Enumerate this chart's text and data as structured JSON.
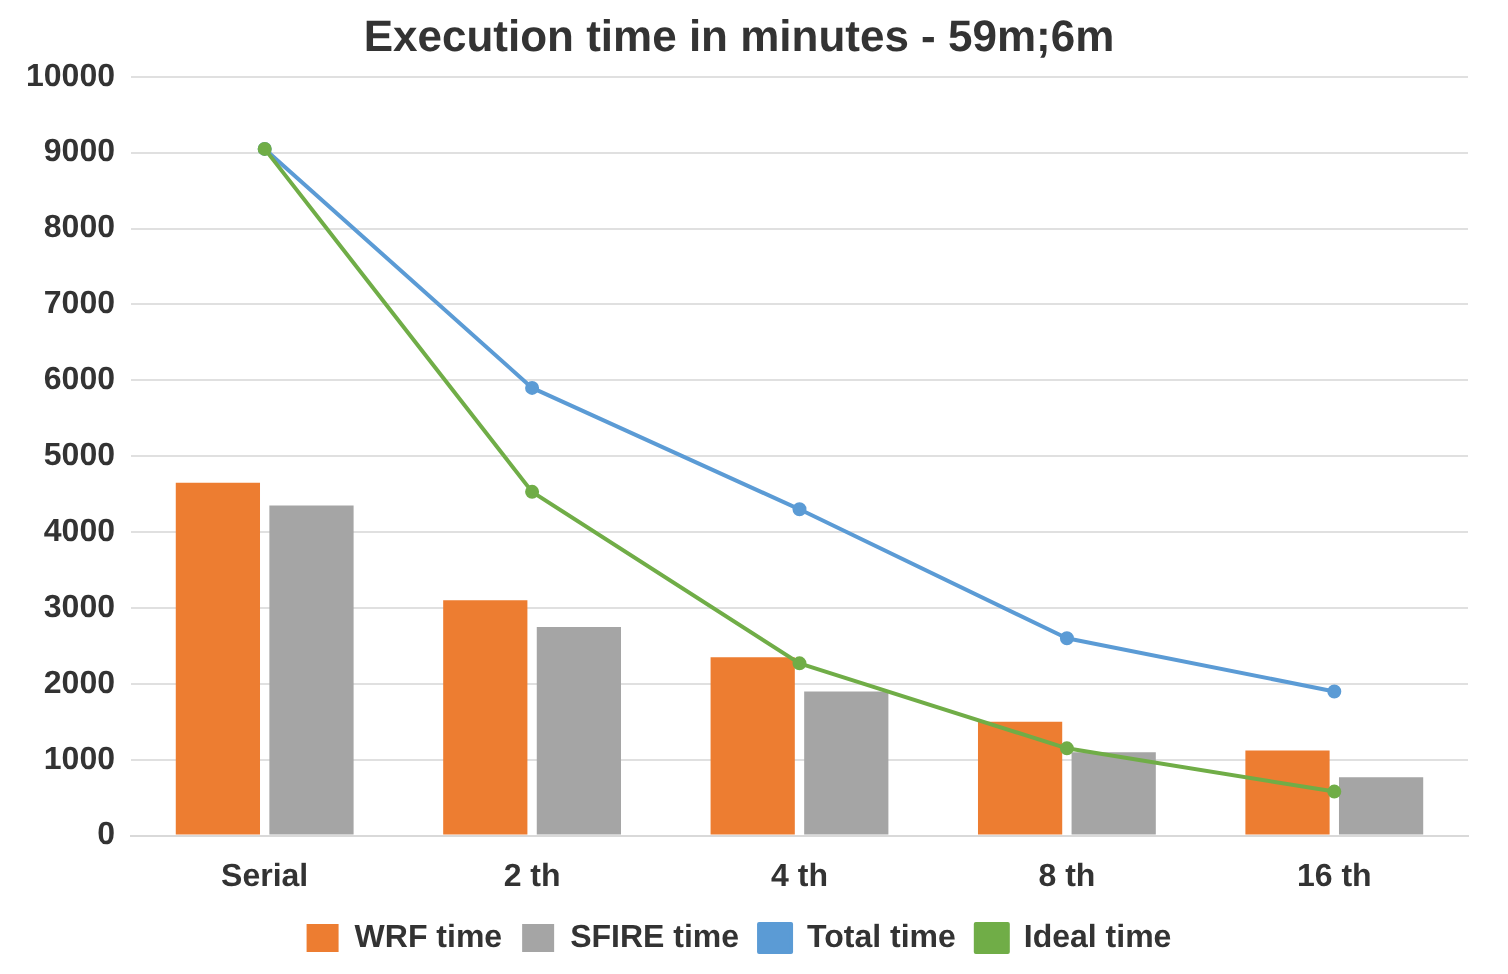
{
  "chart_data": {
    "type": "bar",
    "title": "Execution time in minutes - 59m;6m",
    "categories": [
      "Serial",
      "2 th",
      "4 th",
      "8 th",
      "16 th"
    ],
    "series": [
      {
        "name": "WRF time",
        "color": "#ed7d31",
        "values": [
          4650,
          3100,
          2350,
          1500,
          1120
        ]
      },
      {
        "name": "SFIRE time",
        "color": "#a5a5a5",
        "values": [
          4350,
          2750,
          1900,
          1100,
          770
        ]
      },
      {
        "name": "Total time",
        "type": "line",
        "color": "#5b9bd5",
        "values": [
          9050,
          5900,
          4300,
          2600,
          1900
        ]
      },
      {
        "name": "Ideal time",
        "type": "line",
        "color": "#70ad47",
        "values": [
          9050,
          4530,
          2270,
          1150,
          580
        ]
      }
    ],
    "ylim": [
      0,
      10000
    ],
    "yticks": [
      0,
      1000,
      2000,
      3000,
      4000,
      5000,
      6000,
      7000,
      8000,
      9000,
      10000
    ],
    "grid": "y",
    "legend": "bottom",
    "marker": "circle",
    "line_style": "solid"
  }
}
